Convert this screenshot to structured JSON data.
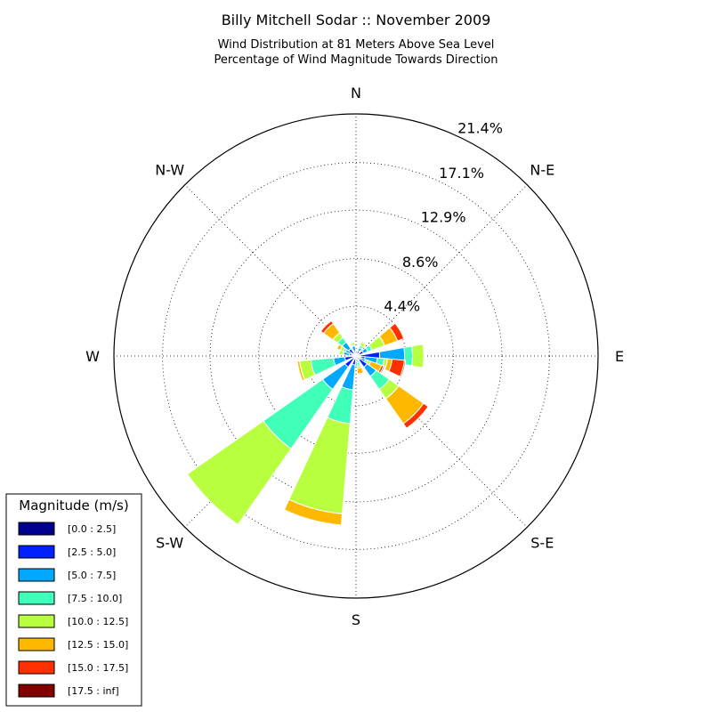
{
  "chart_data": {
    "type": "windrose",
    "title": "Billy Mitchell Sodar :: November 2009",
    "subtitle_lines": [
      "Wind Distribution at 81 Meters Above Sea Level",
      "Percentage of Wind Magnitude Towards Direction"
    ],
    "directions": [
      {
        "label": "N",
        "angle": 0
      },
      {
        "label": "N-E",
        "angle": 45
      },
      {
        "label": "E",
        "angle": 90
      },
      {
        "label": "S-E",
        "angle": 135
      },
      {
        "label": "S",
        "angle": 180
      },
      {
        "label": "S-W",
        "angle": 225
      },
      {
        "label": "W",
        "angle": 270
      },
      {
        "label": "N-W",
        "angle": 315
      }
    ],
    "radial_ticks": [
      4.4,
      8.6,
      12.9,
      17.1,
      21.4
    ],
    "radial_tick_labels": [
      "4.4%",
      "8.6%",
      "12.9%",
      "17.1%",
      "21.4%"
    ],
    "r_max": 21.4,
    "grid": true,
    "legend": {
      "title": "Magnitude (m/s)",
      "position": "bottom-left",
      "entries": [
        {
          "label": "[0.0 : 2.5]",
          "color": "#00008f"
        },
        {
          "label": "[2.5 : 5.0]",
          "color": "#0020ff"
        },
        {
          "label": "[5.0 : 7.5]",
          "color": "#00a8ff"
        },
        {
          "label": "[7.5 : 10.0]",
          "color": "#40ffb8"
        },
        {
          "label": "[10.0 : 12.5]",
          "color": "#b8ff40"
        },
        {
          "label": "[12.5 : 15.0]",
          "color": "#ffb800"
        },
        {
          "label": "[15.0 : 17.5]",
          "color": "#ff3000"
        },
        {
          "label": "[17.5 : inf]",
          "color": "#800000"
        }
      ]
    },
    "sector_width_deg": 20,
    "sectors": [
      {
        "direction_deg": 30,
        "cumulative": [
          0.2,
          0.5,
          0.8,
          1.0,
          1.3,
          1.4,
          1.4,
          1.4
        ]
      },
      {
        "direction_deg": 60,
        "cumulative": [
          0.3,
          0.7,
          1.1,
          1.5,
          2.7,
          3.9,
          4.5,
          4.5
        ]
      },
      {
        "direction_deg": 90,
        "cumulative": [
          0.4,
          2.1,
          4.3,
          5.0,
          6.0,
          6.0,
          6.0,
          6.0
        ]
      },
      {
        "direction_deg": 105,
        "cumulative": [
          0.4,
          0.8,
          1.9,
          2.5,
          2.8,
          3.2,
          4.3,
          4.4
        ]
      },
      {
        "direction_deg": 120,
        "cumulative": [
          0.3,
          0.5,
          0.9,
          1.1,
          1.4,
          2.4,
          2.6,
          2.7
        ]
      },
      {
        "direction_deg": 135,
        "cumulative": [
          0.4,
          1.2,
          2.2,
          3.6,
          4.6,
          7.3,
          7.8,
          7.8
        ]
      },
      {
        "direction_deg": 165,
        "cumulative": [
          0.1,
          0.3,
          0.6,
          0.9,
          1.1,
          1.6,
          1.6,
          1.6
        ]
      },
      {
        "direction_deg": 180,
        "cumulative": [
          0.1,
          0.2,
          0.5,
          0.9,
          0.9,
          0.9,
          0.9,
          0.9
        ]
      },
      {
        "direction_deg": 195,
        "cumulative": [
          0.2,
          0.8,
          3.0,
          6.0,
          14.0,
          15.0,
          15.0,
          15.0
        ]
      },
      {
        "direction_deg": 225,
        "cumulative": [
          0.2,
          1.2,
          3.6,
          10.0,
          18.2,
          18.2,
          18.2,
          18.2
        ]
      },
      {
        "direction_deg": 255,
        "cumulative": [
          0.2,
          1.0,
          2.0,
          4.0,
          5.0,
          5.2,
          5.2,
          5.2
        ]
      },
      {
        "direction_deg": 285,
        "cumulative": [
          0.2,
          0.6,
          1.1,
          1.2,
          1.5,
          1.5,
          1.5,
          1.5
        ]
      },
      {
        "direction_deg": 300,
        "cumulative": [
          0.2,
          0.4,
          1.0,
          1.2,
          1.5,
          1.8,
          1.8,
          1.8
        ]
      },
      {
        "direction_deg": 315,
        "cumulative": [
          0.3,
          0.8,
          1.5,
          2.0,
          2.5,
          3.5,
          3.8,
          3.8
        ]
      },
      {
        "direction_deg": 345,
        "cumulative": [
          0.2,
          0.4,
          0.9,
          1.0,
          1.2,
          1.2,
          1.2,
          1.2
        ]
      }
    ]
  }
}
